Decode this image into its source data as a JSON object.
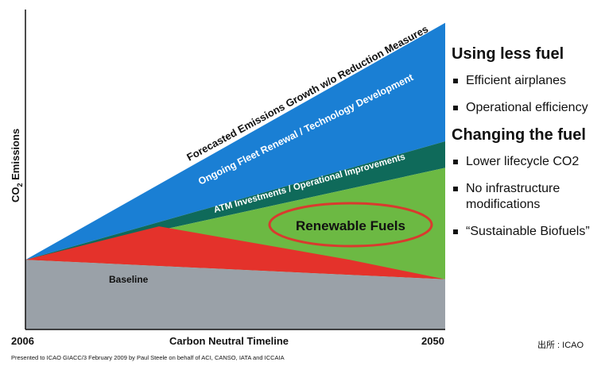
{
  "chart_data": {
    "type": "area",
    "title": "",
    "xlabel": "Carbon Neutral Timeline",
    "ylabel": "CO2 Emissions",
    "ylabel_main": "CO",
    "ylabel_sub": "2",
    "ylabel_rest": " Emissions",
    "x_ticks": [
      "2006",
      "2050"
    ],
    "xlim": [
      2006,
      2050
    ],
    "grid": false,
    "series": [
      {
        "name": "Forecasted Emissions Growth w/o Reduction Measures",
        "x": [
          2006,
          2050
        ],
        "y": [
          100,
          440
        ],
        "color": "#1a7fd4"
      },
      {
        "name": "Ongoing Fleet Renewal / Technology Development",
        "x": [
          2006,
          2050
        ],
        "y": [
          100,
          270
        ],
        "color": "#0f6a5a"
      },
      {
        "name": "ATM Investments / Operational Improvements",
        "x": [
          2006,
          2050
        ],
        "y": [
          100,
          232
        ],
        "color": "#6cb943"
      },
      {
        "name": "Renewable Fuels",
        "x": [
          2006,
          2020,
          2040,
          2050
        ],
        "y": [
          100,
          148,
          100,
          72
        ],
        "color": "#e4322b"
      },
      {
        "name": "Baseline",
        "x": [
          2006,
          2050
        ],
        "y": [
          100,
          72
        ],
        "color": "#9aa1a8"
      }
    ],
    "annotations": {
      "growth_label": "Forecasted Emissions Growth w/o Reduction Measures",
      "fleet_label": "Ongoing Fleet Renewal / Technology Development",
      "atm_label": "ATM Investments / Operational Improvements",
      "renewable_label": "Renewable Fuels",
      "baseline_label": "Baseline"
    }
  },
  "side": {
    "heading1": "Using less fuel",
    "items1": [
      "Efficient airplanes",
      "Operational efficiency"
    ],
    "heading2": "Changing the fuel",
    "items2": [
      "Lower lifecycle CO2",
      "No infrastructure modifications",
      "“Sustainable Biofuels”"
    ]
  },
  "source": "出所 : ICAO",
  "footer": "Presented to ICAO GIACC/3 February 2009 by Paul Steele on behalf of ACI, CANSO, IATA and ICCAIA",
  "colors": {
    "growth": "#1a7fd4",
    "fleet": "#0f6a5a",
    "renewable_area": "#6cb943",
    "red": "#e4322b",
    "baseline": "#9aa1a8",
    "ellipse": "#d93a2e"
  }
}
